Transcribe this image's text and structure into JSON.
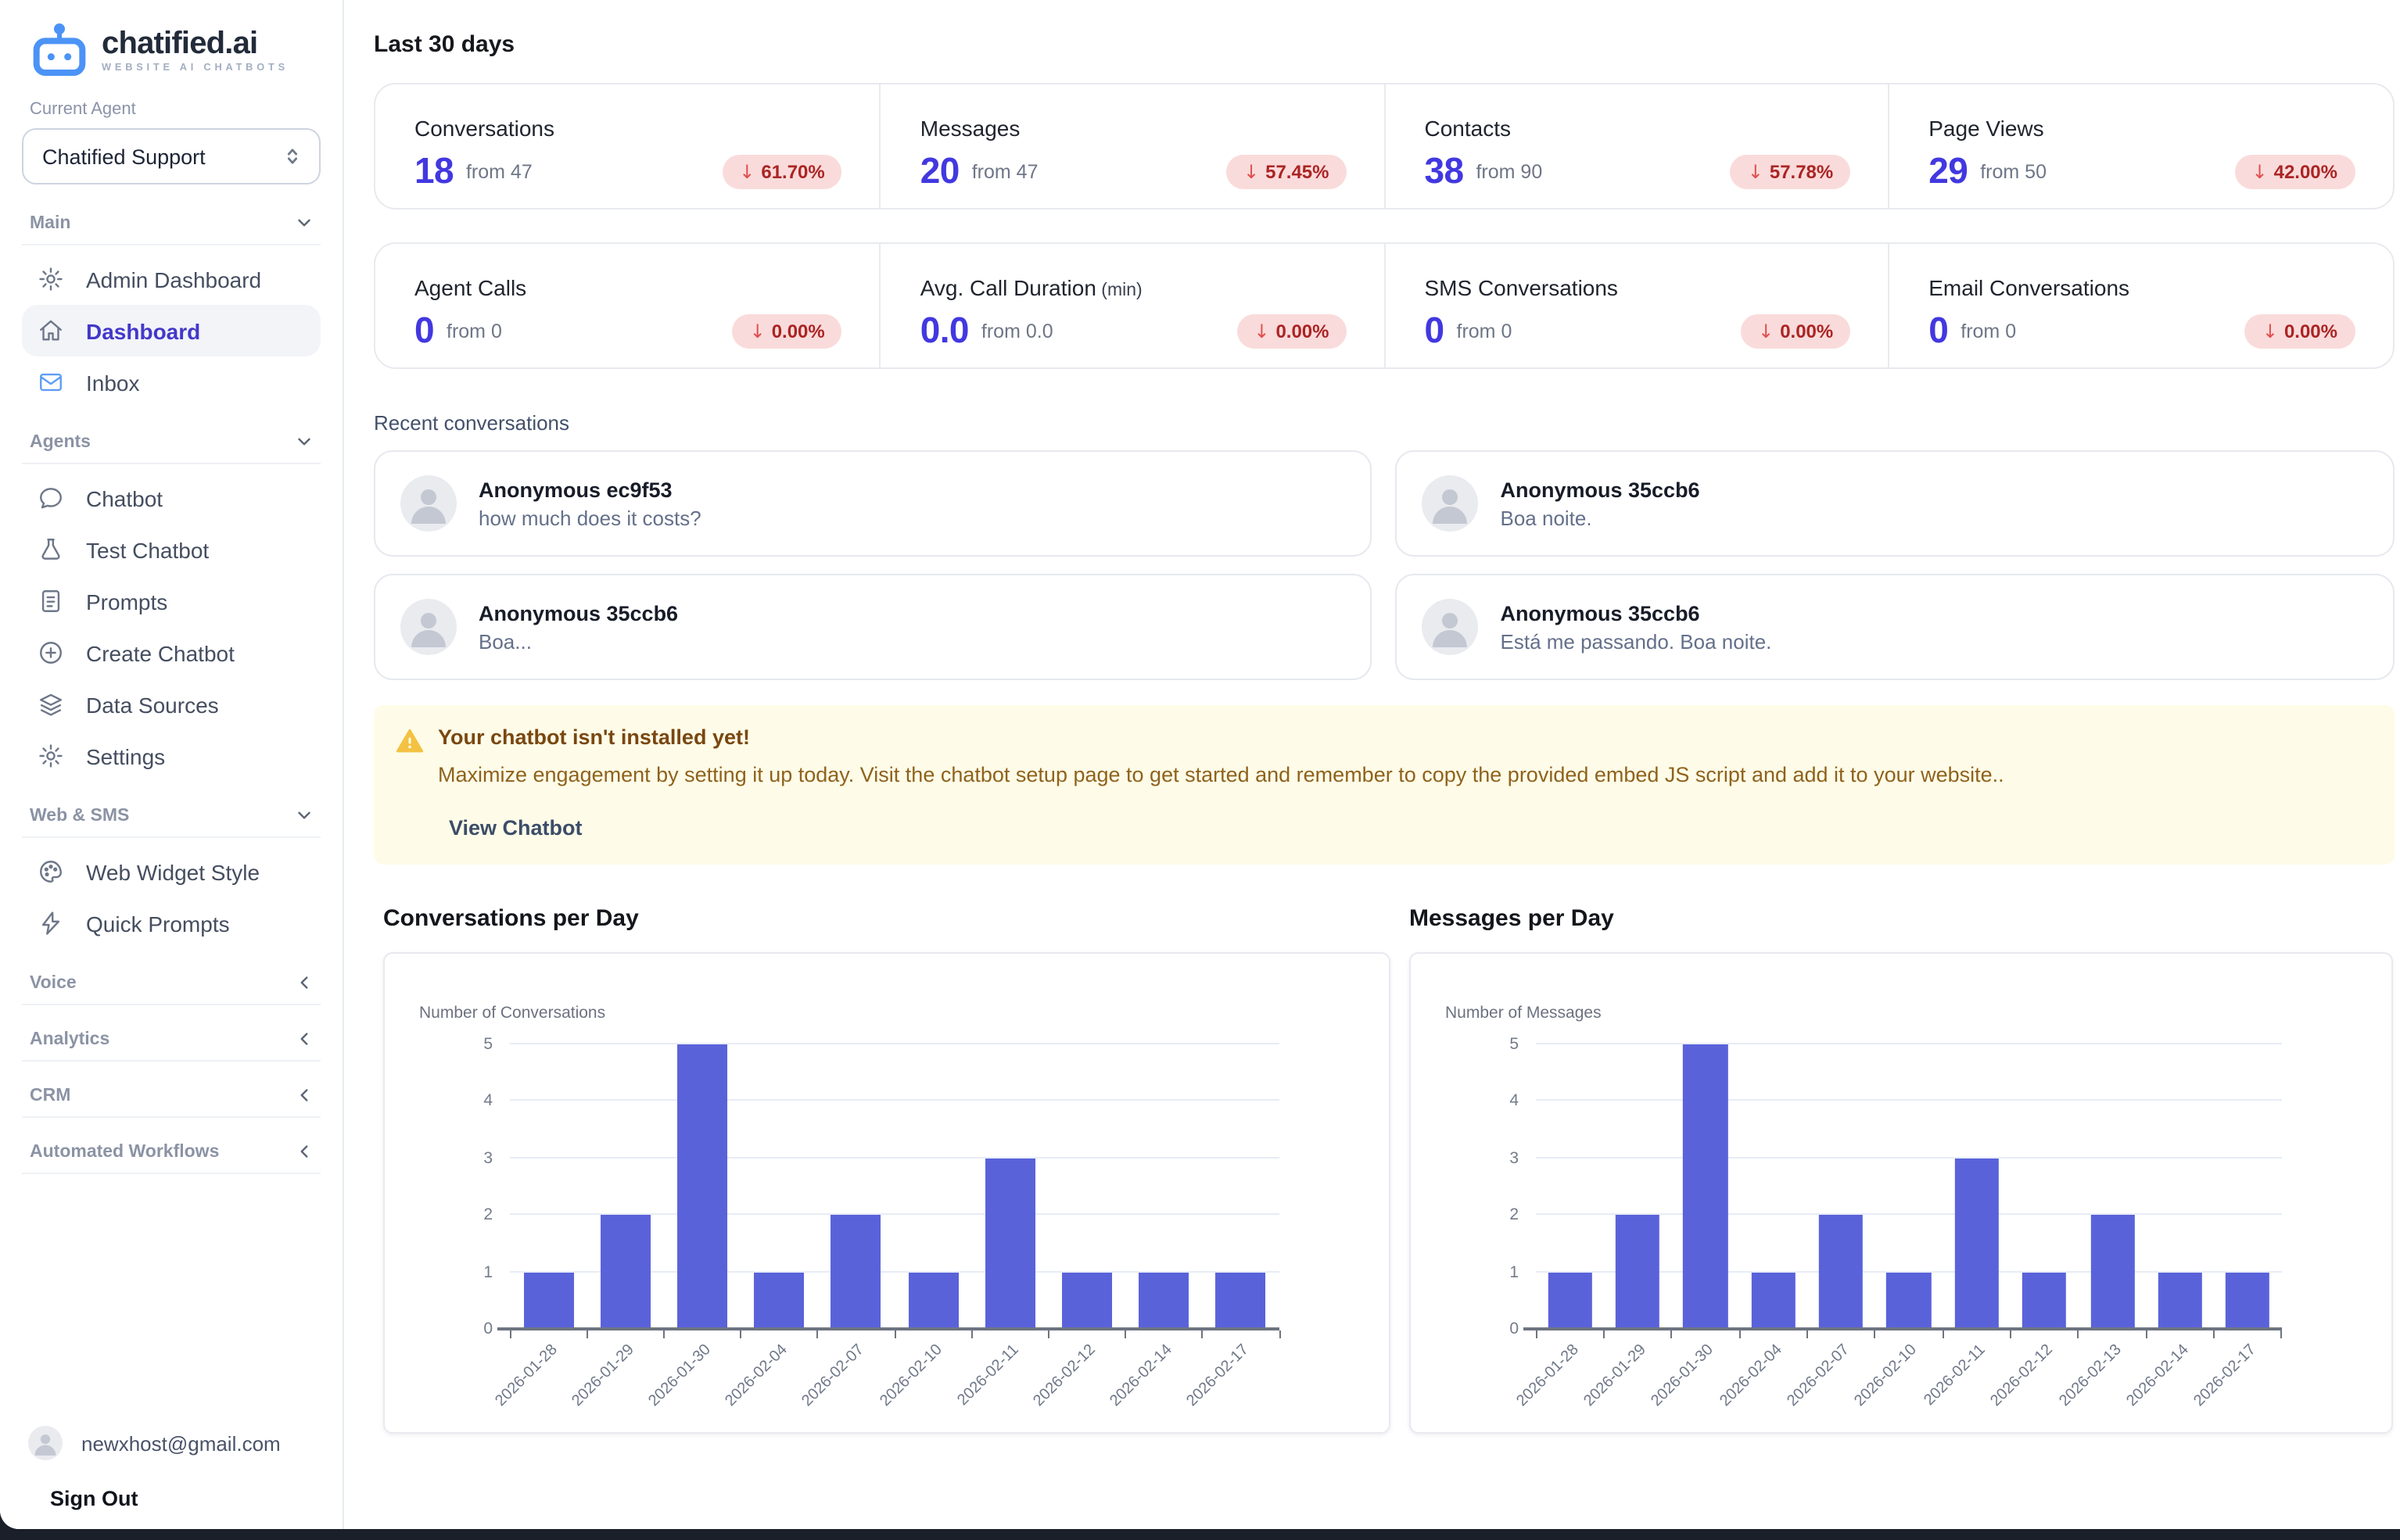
{
  "brand": {
    "name": "chatified.ai",
    "tagline": "WEBSITE AI CHATBOTS"
  },
  "sidebar": {
    "current_agent_label": "Current Agent",
    "agent_select_value": "Chatified Support",
    "groups": [
      {
        "label": "Main",
        "state": "expanded",
        "items": [
          {
            "key": "admin-dashboard",
            "label": "Admin Dashboard",
            "icon": "gear-icon"
          },
          {
            "key": "dashboard",
            "label": "Dashboard",
            "icon": "home-icon",
            "active": true
          },
          {
            "key": "inbox",
            "label": "Inbox",
            "icon": "mail-icon",
            "icon_color": "#5f9df6"
          }
        ]
      },
      {
        "label": "Agents",
        "state": "expanded",
        "items": [
          {
            "key": "chatbot",
            "label": "Chatbot",
            "icon": "chat-bubble-icon"
          },
          {
            "key": "test-chatbot",
            "label": "Test Chatbot",
            "icon": "flask-icon"
          },
          {
            "key": "prompts",
            "label": "Prompts",
            "icon": "document-icon"
          },
          {
            "key": "create-chatbot",
            "label": "Create Chatbot",
            "icon": "plus-circle-icon"
          },
          {
            "key": "data-sources",
            "label": "Data Sources",
            "icon": "layers-icon"
          },
          {
            "key": "settings",
            "label": "Settings",
            "icon": "gear-icon"
          }
        ]
      },
      {
        "label": "Web & SMS",
        "state": "expanded",
        "items": [
          {
            "key": "web-widget-style",
            "label": "Web Widget Style",
            "icon": "palette-icon"
          },
          {
            "key": "quick-prompts",
            "label": "Quick Prompts",
            "icon": "bolt-icon"
          }
        ]
      },
      {
        "label": "Voice",
        "state": "collapsed",
        "items": []
      },
      {
        "label": "Analytics",
        "state": "collapsed",
        "items": []
      },
      {
        "label": "CRM",
        "state": "collapsed",
        "items": []
      },
      {
        "label": "Automated Workflows",
        "state": "collapsed",
        "items": []
      }
    ],
    "user_email": "newxhost@gmail.com",
    "sign_out_label": "Sign Out"
  },
  "header": {
    "title": "Last 30 days"
  },
  "stats": {
    "rows": [
      [
        {
          "label": "Conversations",
          "value": "18",
          "from": "from 47",
          "change": "61.70%",
          "direction": "down"
        },
        {
          "label": "Messages",
          "value": "20",
          "from": "from 47",
          "change": "57.45%",
          "direction": "down"
        },
        {
          "label": "Contacts",
          "value": "38",
          "from": "from 90",
          "change": "57.78%",
          "direction": "down"
        },
        {
          "label": "Page Views",
          "value": "29",
          "from": "from 50",
          "change": "42.00%",
          "direction": "down"
        }
      ],
      [
        {
          "label": "Agent Calls",
          "value": "0",
          "from": "from 0",
          "change": "0.00%",
          "direction": "down"
        },
        {
          "label": "Avg. Call Duration",
          "unit": "(min)",
          "value": "0.0",
          "from": "from 0.0",
          "change": "0.00%",
          "direction": "down"
        },
        {
          "label": "SMS Conversations",
          "value": "0",
          "from": "from 0",
          "change": "0.00%",
          "direction": "down"
        },
        {
          "label": "Email Conversations",
          "value": "0",
          "from": "from 0",
          "change": "0.00%",
          "direction": "down"
        }
      ]
    ]
  },
  "recent": {
    "title": "Recent conversations",
    "cards": [
      {
        "name": "Anonymous ec9f53",
        "message": "how much does it costs?"
      },
      {
        "name": "Anonymous 35ccb6",
        "message": "Boa noite."
      },
      {
        "name": "Anonymous 35ccb6",
        "message": "Boa..."
      },
      {
        "name": "Anonymous 35ccb6",
        "message": "Está me passando. Boa noite."
      }
    ]
  },
  "banner": {
    "title": "Your chatbot isn't installed yet!",
    "body": "Maximize engagement by setting it up today. Visit the chatbot setup page to get started and remember to copy the provided embed JS script and add it to your website..",
    "cta": "View Chatbot"
  },
  "chart_data": [
    {
      "type": "bar",
      "title": "Conversations per Day",
      "ylabel": "Number of Conversations",
      "xlabel": "",
      "categories": [
        "2026-01-28",
        "2026-01-29",
        "2026-01-30",
        "2026-02-04",
        "2026-02-07",
        "2026-02-10",
        "2026-02-11",
        "2026-02-12",
        "2026-02-14",
        "2026-02-17"
      ],
      "values": [
        1,
        2,
        5,
        1,
        2,
        1,
        3,
        1,
        1,
        1
      ],
      "ylim": [
        0,
        5
      ],
      "yticks": [
        0,
        1,
        2,
        3,
        4,
        5
      ],
      "grid": true,
      "legend": "none",
      "bar_color": "#5a62da"
    },
    {
      "type": "bar",
      "title": "Messages per Day",
      "ylabel": "Number of Messages",
      "xlabel": "",
      "categories": [
        "2026-01-28",
        "2026-01-29",
        "2026-01-30",
        "2026-02-04",
        "2026-02-07",
        "2026-02-10",
        "2026-02-11",
        "2026-02-12",
        "2026-02-13",
        "2026-02-14",
        "2026-02-17"
      ],
      "values": [
        1,
        2,
        5,
        1,
        2,
        1,
        3,
        1,
        2,
        1,
        1
      ],
      "ylim": [
        0,
        5
      ],
      "yticks": [
        0,
        1,
        2,
        3,
        4,
        5
      ],
      "grid": true,
      "legend": "none",
      "bar_color": "#5a62da"
    }
  ],
  "colors": {
    "accent": "#4338ca",
    "logo_blue": "#4b93f6",
    "stat_value": "#4238e0",
    "bar": "#5a62da",
    "badge_bg": "#fadbdb",
    "badge_text": "#ab2424",
    "badge_arrow": "#e04f4f",
    "banner_bg": "#fefce8",
    "banner_title": "#7a4710",
    "banner_body": "#8f621d",
    "warning_amber": "#f4c242"
  }
}
